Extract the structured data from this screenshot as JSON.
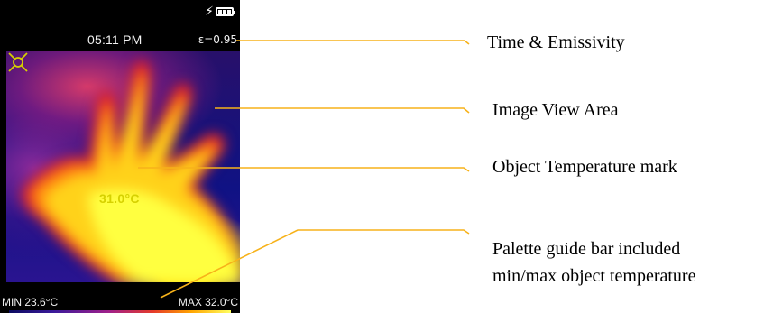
{
  "device": {
    "status_bar": {
      "time": "05:11 PM",
      "emissivity": "ε=0.95",
      "charging_icon": "lightning-bolt-icon",
      "battery_icon": "battery-full-icon"
    },
    "image_view": {
      "object_temperature": "31.0°C",
      "target_icon": "crosshair-target-icon"
    },
    "bottom_bar": {
      "min": "MIN 23.6°C",
      "max": "MAX 32.0°C"
    }
  },
  "annotations": [
    {
      "label": "Time & Emissivity"
    },
    {
      "label": "Image View Area"
    },
    {
      "label": "Object Temperature mark"
    },
    {
      "label_line1": "Palette guide bar included",
      "label_line2": "min/max object temperature"
    }
  ],
  "colors": {
    "callout_line": "#f7b21a",
    "target_mark": "#d6d100"
  }
}
